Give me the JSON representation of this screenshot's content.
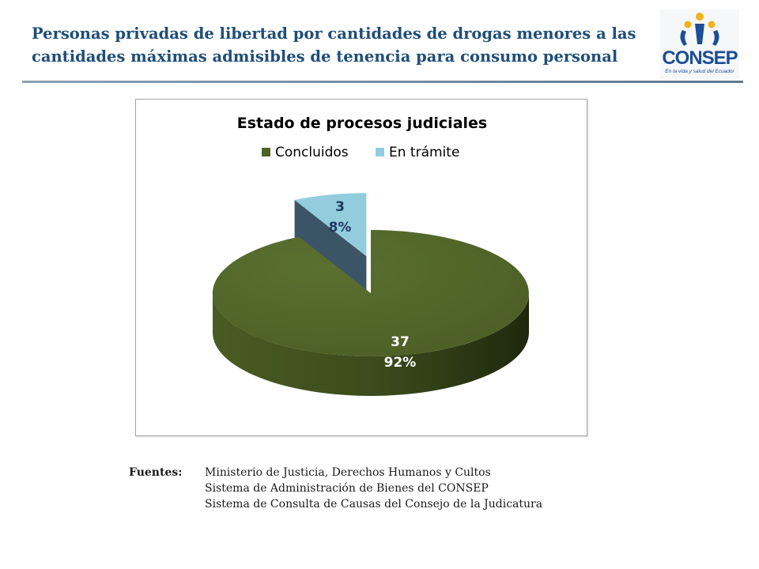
{
  "header": {
    "title_lines": [
      "Personas privadas de libertad por cantidades de drogas menores a las",
      "cantidades máximas admisibles de tenencia para consumo personal"
    ]
  },
  "logo": {
    "wordmark": "CONSEP",
    "tagline": "En la vida y salud del Ecuador",
    "colors": {
      "blue": "#1d4e96",
      "gold": "#f2b21b"
    }
  },
  "chart_data": {
    "type": "pie",
    "title": "Estado de procesos judiciales",
    "legend_position": "top",
    "slices": [
      {
        "name": "Concluidos",
        "value": 37,
        "percent": "92%",
        "color": "#4f6228"
      },
      {
        "name": "En trámite",
        "value": 3,
        "percent": "8%",
        "color": "#93cddd"
      }
    ],
    "labels": [
      {
        "value_text": "37",
        "percent_text": "92%"
      },
      {
        "value_text": "3",
        "percent_text": "8%"
      }
    ]
  },
  "sources": {
    "label": "Fuentes:",
    "items": [
      "Ministerio de Justicia, Derechos Humanos y Cultos",
      "Sistema de Administración de Bienes del CONSEP",
      "Sistema de Consulta de Causas del Consejo de la Judicatura"
    ]
  }
}
